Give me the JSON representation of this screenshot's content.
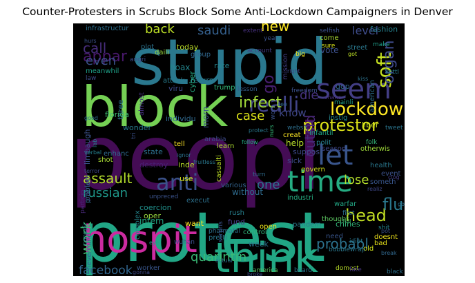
{
  "title": "Counter-Protesters in Scrubs Block Some Anti-Lockdown Campaigners in Denver",
  "palette": {
    "background": "#000000"
  },
  "words": [
    {
      "text": "peopl",
      "color": "#440c55"
    },
    {
      "text": "protest",
      "color": "#21a685"
    },
    {
      "text": "stupid",
      "color": "#2a788e"
    },
    {
      "text": "block",
      "color": "#75d054"
    },
    {
      "text": "think",
      "color": "#22a884"
    },
    {
      "text": "hospit",
      "color": "#cc2ba0"
    },
    {
      "text": "seem",
      "color": "#433e85"
    },
    {
      "text": "let",
      "color": "#39558c"
    },
    {
      "text": "time",
      "color": "#25ac82"
    },
    {
      "text": "anti",
      "color": "#3b528b"
    },
    {
      "text": "lockdown",
      "color": "#fde725"
    },
    {
      "text": "protestor",
      "color": "#dde318"
    },
    {
      "text": "realli",
      "color": "#414487"
    },
    {
      "text": "infect",
      "color": "#a0da39"
    },
    {
      "text": "assault",
      "color": "#b5de2b"
    },
    {
      "text": "case",
      "color": "#dde318"
    },
    {
      "text": "probabl",
      "color": "#2c728e"
    },
    {
      "text": "head",
      "color": "#c2df23"
    },
    {
      "text": "lose",
      "color": "#b5de2b"
    },
    {
      "text": "facebook",
      "color": "#31668e"
    },
    {
      "text": "russian",
      "color": "#1f988b"
    },
    {
      "text": "work",
      "color": "#3dbc74"
    },
    {
      "text": "flu",
      "color": "#2a788e"
    },
    {
      "text": "one",
      "color": "#2c738e"
    },
    {
      "text": "quarintin",
      "color": "#3aba76"
    },
    {
      "text": "soft",
      "color": "#c5e021"
    },
    {
      "text": "organ",
      "color": "#3e4a89"
    },
    {
      "text": "appar",
      "color": "#48186a"
    },
    {
      "text": "back",
      "color": "#bddf26"
    },
    {
      "text": "saudi",
      "color": "#35608d"
    },
    {
      "text": "call",
      "color": "#472d7b"
    },
    {
      "text": "even",
      "color": "#3b528b"
    },
    {
      "text": "new",
      "color": "#fde725"
    },
    {
      "text": "level",
      "color": "#3e4c8a"
    },
    {
      "text": "go",
      "color": "#481f70"
    },
    {
      "text": "die",
      "color": "#46337f"
    },
    {
      "text": "know",
      "color": "#3f4788"
    },
    {
      "text": "outsid",
      "color": "#482878"
    },
    {
      "text": "help",
      "color": "#b8de29"
    },
    {
      "text": "infrastructur",
      "color": "#2d708e"
    },
    {
      "text": "plot",
      "color": "#2c728e"
    },
    {
      "text": "today",
      "color": "#bddf26"
    },
    {
      "text": "group",
      "color": "#31688e"
    },
    {
      "text": "rate",
      "color": "#25848e"
    },
    {
      "text": "daili",
      "color": "#9bd93c"
    },
    {
      "text": "angri",
      "color": "#3d4d8a"
    },
    {
      "text": "hoax",
      "color": "#24868e"
    },
    {
      "text": "meanwhil",
      "color": "#1fa188"
    },
    {
      "text": "attack",
      "color": "#287c8e"
    },
    {
      "text": "return",
      "color": "#297a8e"
    },
    {
      "text": "viru",
      "color": "#3e4a89"
    },
    {
      "text": "trump",
      "color": "#35b779"
    },
    {
      "text": "cyber",
      "color": "#25ab82"
    },
    {
      "text": "lesson",
      "color": "#355f8d"
    },
    {
      "text": "florida",
      "color": "#3fbc73"
    },
    {
      "text": "wonder",
      "color": "#287d8e"
    },
    {
      "text": "individu",
      "color": "#30698e"
    },
    {
      "text": "limbaugh",
      "color": "#3b528b"
    },
    {
      "text": "patriot",
      "color": "#433d84"
    },
    {
      "text": "three",
      "color": "#2d718e"
    },
    {
      "text": "almost",
      "color": "#46327e"
    },
    {
      "text": "fashion",
      "color": "#26818e"
    },
    {
      "text": "selfish",
      "color": "#3b518b"
    },
    {
      "text": "come",
      "color": "#aadc32"
    },
    {
      "text": "sure",
      "color": "#d8e219"
    },
    {
      "text": "street",
      "color": "#2a788e"
    },
    {
      "text": "got",
      "color": "#bddf26"
    },
    {
      "text": "vote",
      "color": "#3c508b"
    },
    {
      "text": "big",
      "color": "#f1e51d"
    },
    {
      "text": "gop",
      "color": "#31678e"
    },
    {
      "text": "mainli",
      "color": "#1fa088"
    },
    {
      "text": "kettl",
      "color": "#287c8e"
    },
    {
      "text": "american",
      "color": "#2d718e"
    },
    {
      "text": "suppos",
      "color": "#3e4989"
    },
    {
      "text": "creat",
      "color": "#fde725"
    },
    {
      "text": "liber",
      "color": "#c8e020"
    },
    {
      "text": "tweet",
      "color": "#2b758e"
    },
    {
      "text": "instig",
      "color": "#24868e"
    },
    {
      "text": "morn",
      "color": "#3a548c"
    },
    {
      "text": "polit",
      "color": "#26818e"
    },
    {
      "text": "otherwis",
      "color": "#9fda3a"
    },
    {
      "text": "infantil",
      "color": "#22a785"
    },
    {
      "text": "websit",
      "color": "#2e6f8e"
    },
    {
      "text": "season",
      "color": "#3f4889"
    },
    {
      "text": "folk",
      "color": "#35b779"
    },
    {
      "text": "sick",
      "color": "#3e4c8a"
    },
    {
      "text": "govern",
      "color": "#d0e11c"
    },
    {
      "text": "health",
      "color": "#2a788e"
    },
    {
      "text": "event",
      "color": "#3b528b"
    },
    {
      "text": "arabia",
      "color": "#3e4a89"
    },
    {
      "text": "learn",
      "color": "#addc30"
    },
    {
      "text": "follow",
      "color": "#25ac82"
    },
    {
      "text": "tell",
      "color": "#fde725"
    },
    {
      "text": "state",
      "color": "#2d708e"
    },
    {
      "text": "enhanc",
      "color": "#30698e"
    },
    {
      "text": "shot",
      "color": "#a8db34"
    },
    {
      "text": "problem",
      "color": "#31678e"
    },
    {
      "text": "destroy",
      "color": "#482173"
    },
    {
      "text": "inde",
      "color": "#b8de29"
    },
    {
      "text": "use",
      "color": "#d5e21a"
    },
    {
      "text": "casualti",
      "color": "#bddf26"
    },
    {
      "text": "various",
      "color": "#33638d"
    },
    {
      "text": "turn",
      "color": "#2f6c8e"
    },
    {
      "text": "someth",
      "color": "#39568c"
    },
    {
      "text": "realiz",
      "color": "#3f4889"
    },
    {
      "text": "without",
      "color": "#2f6b8e"
    },
    {
      "text": "industri",
      "color": "#26ad81"
    },
    {
      "text": "unpreced",
      "color": "#3b528b"
    },
    {
      "text": "execut",
      "color": "#2d718e"
    },
    {
      "text": "coercion",
      "color": "#21918c"
    },
    {
      "text": "oper",
      "color": "#99d83d"
    },
    {
      "text": "intern",
      "color": "#22a884"
    },
    {
      "text": "want",
      "color": "#fde725"
    },
    {
      "text": "rush",
      "color": "#27808e"
    },
    {
      "text": "fund",
      "color": "#433d84"
    },
    {
      "text": "open",
      "color": "#ece51b"
    },
    {
      "text": "thought",
      "color": "#5ec962"
    },
    {
      "text": "chines",
      "color": "#32b67a"
    },
    {
      "text": "pandem",
      "color": "#287d8e"
    },
    {
      "text": "warfar",
      "color": "#22a785"
    },
    {
      "text": "first",
      "color": "#2c728e"
    },
    {
      "text": "full",
      "color": "#44bf70"
    },
    {
      "text": "shit",
      "color": "#25838e"
    },
    {
      "text": "doesnt",
      "color": "#f1e51d"
    },
    {
      "text": "bad",
      "color": "#eae51a"
    },
    {
      "text": "old",
      "color": "#d2e21b"
    },
    {
      "text": "need",
      "color": "#39568c"
    },
    {
      "text": "week",
      "color": "#2c728e"
    },
    {
      "text": "control",
      "color": "#31b57b"
    },
    {
      "text": "pretti",
      "color": "#2a788e"
    },
    {
      "text": "wuhan",
      "color": "#3c4f8a"
    },
    {
      "text": "complex",
      "color": "#24868e"
    },
    {
      "text": "pharmafal",
      "color": "#2c728e"
    },
    {
      "text": "surpris",
      "color": "#3a548c"
    },
    {
      "text": "particip",
      "color": "#482979"
    },
    {
      "text": "conspir",
      "color": "#287c8e"
    },
    {
      "text": "nevermind",
      "color": "#31678e"
    },
    {
      "text": "worker",
      "color": "#39568c"
    },
    {
      "text": "gonna",
      "color": "#3e4a89"
    },
    {
      "text": "america",
      "color": "#5ec962"
    },
    {
      "text": "board",
      "color": "#2a768e"
    },
    {
      "text": "domest",
      "color": "#b8de29"
    },
    {
      "text": "fate",
      "color": "#46327e"
    },
    {
      "text": "black",
      "color": "#2d718e"
    },
    {
      "text": "extent",
      "color": "#46307e"
    },
    {
      "text": "year",
      "color": "#3b528b"
    },
    {
      "text": "account",
      "color": "#433d84"
    },
    {
      "text": "chanc",
      "color": "#472d7b"
    },
    {
      "text": "mission",
      "color": "#423f85"
    },
    {
      "text": "freedom",
      "color": "#3b528b"
    },
    {
      "text": "right",
      "color": "#3e4a89"
    },
    {
      "text": "see",
      "color": "#31688e"
    },
    {
      "text": "hurs",
      "color": "#3b528b"
    },
    {
      "text": "law",
      "color": "#3e4c8a"
    },
    {
      "text": "good",
      "color": "#2e6e8e"
    },
    {
      "text": "make",
      "color": "#1f9e89"
    },
    {
      "text": "tri",
      "color": "#3b518b"
    },
    {
      "text": "eye",
      "color": "#1fa088"
    },
    {
      "text": "bubblewrap",
      "color": "#2a788e"
    },
    {
      "text": "idiot",
      "color": "#2a788e"
    },
    {
      "text": "broke",
      "color": "#3e4a89"
    },
    {
      "text": "break",
      "color": "#31688e"
    },
    {
      "text": "actual",
      "color": "#2c728e"
    },
    {
      "text": "pot",
      "color": "#3b528b"
    },
    {
      "text": "clog",
      "color": "#433d84"
    },
    {
      "text": "goal",
      "color": "#2d718e"
    },
    {
      "text": "verbal",
      "color": "#26818e"
    },
    {
      "text": "ignor",
      "color": "#2c728e"
    },
    {
      "text": "terror",
      "color": "#3e4a89"
    },
    {
      "text": "fruitless",
      "color": "#2a788e"
    },
    {
      "text": "wors",
      "color": "#3b528b"
    },
    {
      "text": "protect",
      "color": "#2a788e"
    },
    {
      "text": "nurs",
      "color": "#35b779"
    },
    {
      "text": "kiss",
      "color": "#2c728e"
    },
    {
      "text": "lab",
      "color": "#26818e"
    }
  ]
}
